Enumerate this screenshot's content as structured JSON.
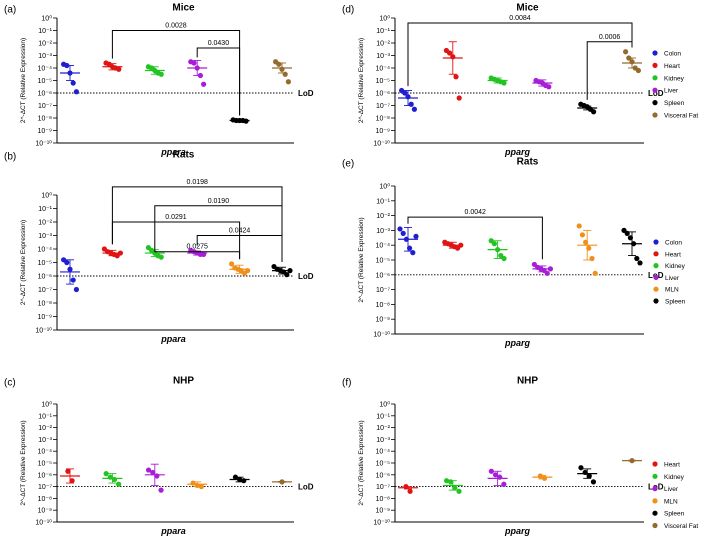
{
  "colors": {
    "Colon": "#1f1fd1",
    "Heart": "#e01414",
    "Kidney": "#22c422",
    "Liver": "#a81ed8",
    "Spleen": "#000000",
    "Visceral Fat": "#946b2d",
    "MLN": "#f0901c"
  },
  "lod_label": "LoD",
  "chart_data": [
    {
      "id": "a",
      "panel_label": "(a)",
      "title": "Mice",
      "type": "scatter",
      "xlabel": "ppara",
      "ylabel": "2^-ΔCT (Relative Expression)",
      "yscale": "log10",
      "ylim_exp": [
        -10,
        0
      ],
      "lod_exp": -6,
      "categories": [
        "Colon",
        "Heart",
        "Kidney",
        "Liver",
        "Spleen",
        "Visceral Fat"
      ],
      "series": [
        {
          "name": "Colon",
          "mean_exp": -4.4,
          "sd_exp": 0.6,
          "points_exp": [
            -3.7,
            -3.8,
            -4.4,
            -5.2,
            -5.9
          ]
        },
        {
          "name": "Heart",
          "mean_exp": -3.9,
          "sd_exp": 0.25,
          "points_exp": [
            -3.6,
            -3.7,
            -3.9,
            -4.0,
            -4.1
          ]
        },
        {
          "name": "Kidney",
          "mean_exp": -4.2,
          "sd_exp": 0.3,
          "points_exp": [
            -3.9,
            -4.0,
            -4.2,
            -4.4,
            -4.5
          ]
        },
        {
          "name": "Liver",
          "mean_exp": -4.0,
          "sd_exp": 0.6,
          "points_exp": [
            -3.5,
            -3.6,
            -4.0,
            -4.6,
            -5.3
          ]
        },
        {
          "name": "Spleen",
          "mean_exp": -8.2,
          "sd_exp": 0.05,
          "points_exp": [
            -8.15,
            -8.2,
            -8.2,
            -8.2,
            -8.25
          ]
        },
        {
          "name": "Visceral Fat",
          "mean_exp": -4.0,
          "sd_exp": 0.4,
          "points_exp": [
            -3.5,
            -3.7,
            -4.1,
            -4.5,
            -5.1
          ]
        }
      ],
      "comparisons": [
        {
          "from": "Heart",
          "to": "Spleen",
          "p": "0.0028",
          "bar_exp": -1.0
        },
        {
          "from": "Liver",
          "to": "Spleen",
          "p": "0.0430",
          "bar_exp": -2.4
        }
      ]
    },
    {
      "id": "b",
      "panel_label": "(b)",
      "title": "Rats",
      "type": "scatter",
      "xlabel": "ppara",
      "ylabel": "2^-ΔCT (Relative Expression)",
      "yscale": "log10",
      "ylim_exp": [
        -10,
        0
      ],
      "lod_exp": -6,
      "categories": [
        "Colon",
        "Heart",
        "Kidney",
        "Liver",
        "MLN",
        "Spleen"
      ],
      "series": [
        {
          "name": "Colon",
          "mean_exp": -5.7,
          "sd_exp": 0.9,
          "points_exp": [
            -4.8,
            -5.0,
            -5.5,
            -6.3,
            -7.0
          ]
        },
        {
          "name": "Heart",
          "mean_exp": -4.3,
          "sd_exp": 0.2,
          "points_exp": [
            -4.0,
            -4.2,
            -4.3,
            -4.4,
            -4.5,
            -4.3
          ]
        },
        {
          "name": "Kidney",
          "mean_exp": -4.3,
          "sd_exp": 0.25,
          "points_exp": [
            -3.9,
            -4.1,
            -4.3,
            -4.5,
            -4.6
          ]
        },
        {
          "name": "Liver",
          "mean_exp": -4.3,
          "sd_exp": 0.15,
          "points_exp": [
            -4.1,
            -4.2,
            -4.3,
            -4.4,
            -4.4
          ]
        },
        {
          "name": "MLN",
          "mean_exp": -5.5,
          "sd_exp": 0.3,
          "points_exp": [
            -5.1,
            -5.4,
            -5.5,
            -5.6,
            -5.8,
            -5.6
          ]
        },
        {
          "name": "Spleen",
          "mean_exp": -5.6,
          "sd_exp": 0.25,
          "points_exp": [
            -5.3,
            -5.5,
            -5.6,
            -5.7,
            -5.9,
            -5.6
          ]
        }
      ],
      "comparisons": [
        {
          "from": "Heart",
          "to": "Spleen",
          "p": "0.0198",
          "bar_exp": 0.6
        },
        {
          "from": "Kidney",
          "to": "Spleen",
          "p": "0.0190",
          "bar_exp": -0.8
        },
        {
          "from": "Heart",
          "to": "MLN",
          "p": "0.0291",
          "bar_exp": -2.0
        },
        {
          "from": "Liver",
          "to": "Spleen",
          "p": "0.0424",
          "bar_exp": -3.0
        },
        {
          "from": "Kidney",
          "to": "MLN",
          "p": "0.0275",
          "bar_exp": -4.2
        }
      ]
    },
    {
      "id": "c",
      "panel_label": "(c)",
      "title": "NHP",
      "type": "scatter",
      "xlabel": "ppara",
      "ylabel": "2^-ΔCT (Relative Expression)",
      "yscale": "log10",
      "ylim_exp": [
        -10,
        0
      ],
      "lod_exp": -7,
      "categories": [
        "Heart",
        "Kidney",
        "Liver",
        "MLN",
        "Spleen",
        "Visceral Fat"
      ],
      "series": [
        {
          "name": "Heart",
          "mean_exp": -6.1,
          "sd_exp": 0.6,
          "points_exp": [
            -5.7,
            -6.5
          ]
        },
        {
          "name": "Kidney",
          "mean_exp": -6.3,
          "sd_exp": 0.4,
          "points_exp": [
            -5.9,
            -6.2,
            -6.4,
            -6.8
          ]
        },
        {
          "name": "Liver",
          "mean_exp": -6.0,
          "sd_exp": 0.9,
          "points_exp": [
            -5.6,
            -5.8,
            -6.1,
            -7.3
          ]
        },
        {
          "name": "MLN",
          "mean_exp": -6.8,
          "sd_exp": 0.2,
          "points_exp": [
            -6.7,
            -6.9,
            -7.0
          ]
        },
        {
          "name": "Spleen",
          "mean_exp": -6.4,
          "sd_exp": 0.2,
          "points_exp": [
            -6.2,
            -6.4,
            -6.5
          ]
        },
        {
          "name": "Visceral Fat",
          "mean_exp": -6.6,
          "sd_exp": 0.03,
          "points_exp": [
            -6.6
          ]
        }
      ],
      "comparisons": []
    },
    {
      "id": "d",
      "panel_label": "(d)",
      "title": "Mice",
      "type": "scatter",
      "xlabel": "pparg",
      "ylabel": "2^-ΔCT (Relative Expression)",
      "yscale": "log10",
      "ylim_exp": [
        -10,
        0
      ],
      "lod_exp": -6,
      "categories": [
        "Colon",
        "Heart",
        "Kidney",
        "Liver",
        "Spleen",
        "Visceral Fat"
      ],
      "series": [
        {
          "name": "Colon",
          "mean_exp": -6.4,
          "sd_exp": 0.6,
          "points_exp": [
            -5.8,
            -6.0,
            -6.3,
            -6.9,
            -7.3
          ]
        },
        {
          "name": "Heart",
          "mean_exp": -3.2,
          "sd_exp": 1.3,
          "points_exp": [
            -2.6,
            -2.8,
            -3.1,
            -4.7,
            -6.4
          ]
        },
        {
          "name": "Kidney",
          "mean_exp": -5.0,
          "sd_exp": 0.2,
          "points_exp": [
            -4.8,
            -4.9,
            -5.0,
            -5.1,
            -5.2
          ]
        },
        {
          "name": "Liver",
          "mean_exp": -5.2,
          "sd_exp": 0.25,
          "points_exp": [
            -5.0,
            -5.1,
            -5.2,
            -5.4,
            -5.5
          ]
        },
        {
          "name": "Spleen",
          "mean_exp": -7.2,
          "sd_exp": 0.15,
          "points_exp": [
            -6.9,
            -7.0,
            -7.1,
            -7.3,
            -7.5
          ]
        },
        {
          "name": "Visceral Fat",
          "mean_exp": -3.6,
          "sd_exp": 0.4,
          "points_exp": [
            -2.7,
            -3.2,
            -3.5,
            -4.0,
            -4.2
          ]
        }
      ],
      "comparisons": [
        {
          "from": "Colon",
          "to": "Visceral Fat",
          "p": "0.0084",
          "bar_exp": -0.4
        },
        {
          "from": "Spleen",
          "to": "Visceral Fat",
          "p": "0.0006",
          "bar_exp": -1.9
        }
      ]
    },
    {
      "id": "e",
      "panel_label": "(e)",
      "title": "Rats",
      "type": "scatter",
      "xlabel": "pparg",
      "ylabel": "2^-ΔCT (Relative Expression)",
      "yscale": "log10",
      "ylim_exp": [
        -10,
        0
      ],
      "lod_exp": -6,
      "categories": [
        "Colon",
        "Heart",
        "Kidney",
        "Liver",
        "MLN",
        "Spleen"
      ],
      "series": [
        {
          "name": "Colon",
          "mean_exp": -3.6,
          "sd_exp": 0.8,
          "points_exp": [
            -2.9,
            -3.2,
            -3.6,
            -4.2,
            -4.5,
            -3.4
          ]
        },
        {
          "name": "Heart",
          "mean_exp": -4.0,
          "sd_exp": 0.2,
          "points_exp": [
            -3.8,
            -3.9,
            -4.0,
            -4.1,
            -4.2,
            -4.0
          ]
        },
        {
          "name": "Kidney",
          "mean_exp": -4.3,
          "sd_exp": 0.6,
          "points_exp": [
            -3.7,
            -3.9,
            -4.3,
            -4.7,
            -4.9
          ]
        },
        {
          "name": "Liver",
          "mean_exp": -5.6,
          "sd_exp": 0.2,
          "points_exp": [
            -5.3,
            -5.5,
            -5.6,
            -5.7,
            -5.9,
            -5.6
          ]
        },
        {
          "name": "MLN",
          "mean_exp": -4.0,
          "sd_exp": 1.0,
          "points_exp": [
            -2.7,
            -3.3,
            -3.8,
            -4.2,
            -4.9,
            -5.9
          ]
        },
        {
          "name": "Spleen",
          "mean_exp": -3.9,
          "sd_exp": 0.8,
          "points_exp": [
            -3.0,
            -3.2,
            -3.5,
            -3.9,
            -4.9,
            -5.2
          ]
        }
      ],
      "comparisons": [
        {
          "from": "Colon",
          "to": "Liver",
          "p": "0.0042",
          "bar_exp": -2.1
        }
      ]
    },
    {
      "id": "f",
      "panel_label": "(f)",
      "title": "NHP",
      "type": "scatter",
      "xlabel": "pparg",
      "ylabel": "2^-ΔCT (Relative Expression)",
      "yscale": "log10",
      "ylim_exp": [
        -10,
        0
      ],
      "lod_exp": -7,
      "categories": [
        "Heart",
        "Kidney",
        "Liver",
        "MLN",
        "Spleen",
        "Visceral Fat"
      ],
      "series": [
        {
          "name": "Heart",
          "mean_exp": -7.1,
          "sd_exp": 0.1,
          "points_exp": [
            -7.0,
            -7.4
          ]
        },
        {
          "name": "Kidney",
          "mean_exp": -6.9,
          "sd_exp": 0.4,
          "points_exp": [
            -6.5,
            -6.6,
            -7.1,
            -7.4
          ]
        },
        {
          "name": "Liver",
          "mean_exp": -6.3,
          "sd_exp": 0.6,
          "points_exp": [
            -5.7,
            -6.0,
            -6.2,
            -6.8
          ]
        },
        {
          "name": "MLN",
          "mean_exp": -6.2,
          "sd_exp": 0.15,
          "points_exp": [
            -6.1,
            -6.3
          ]
        },
        {
          "name": "Spleen",
          "mean_exp": -5.9,
          "sd_exp": 0.4,
          "points_exp": [
            -5.4,
            -5.8,
            -6.1,
            -6.6
          ]
        },
        {
          "name": "Visceral Fat",
          "mean_exp": -4.8,
          "sd_exp": 0.03,
          "points_exp": [
            -4.8
          ]
        }
      ],
      "comparisons": []
    }
  ],
  "legends": [
    {
      "panel": "d",
      "items": [
        "Colon",
        "Heart",
        "Kidney",
        "Liver",
        "Spleen",
        "Visceral Fat"
      ]
    },
    {
      "panel": "e",
      "items": [
        "Colon",
        "Heart",
        "Kidney",
        "Liver",
        "MLN",
        "Spleen"
      ]
    },
    {
      "panel": "f",
      "items": [
        "Heart",
        "Kidney",
        "Liver",
        "MLN",
        "Spleen",
        "Visceral Fat"
      ]
    }
  ]
}
